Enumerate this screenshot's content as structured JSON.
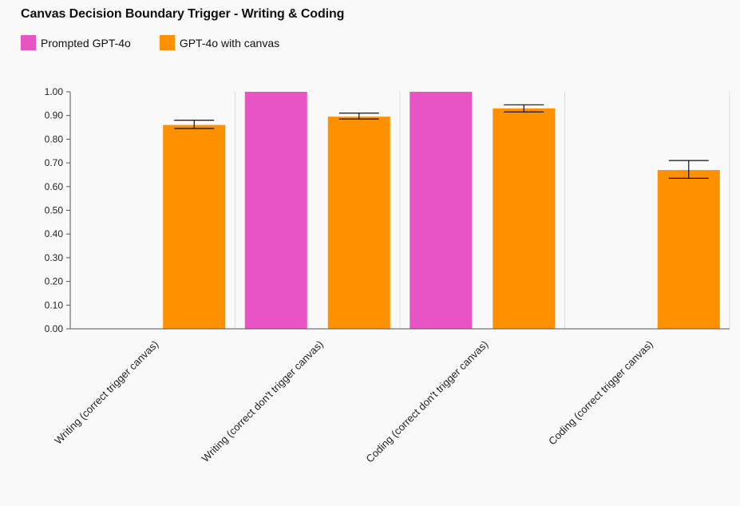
{
  "chart_data": {
    "type": "bar",
    "title": "Canvas Decision Boundary Trigger - Writing & Coding",
    "xlabel": "",
    "ylabel": "",
    "ylim": [
      0,
      1.0
    ],
    "yticks": [
      "0.00",
      "0.10",
      "0.20",
      "0.30",
      "0.40",
      "0.50",
      "0.60",
      "0.70",
      "0.80",
      "0.90",
      "1.00"
    ],
    "categories": [
      "Writing (correct trigger canvas)",
      "Writing (correct don't trigger canvas)",
      "Coding (correct don't trigger canvas)",
      "Coding (correct trigger canvas)"
    ],
    "series": [
      {
        "name": "Prompted GPT-4o",
        "color": "#e954c5",
        "values": [
          null,
          1.0,
          1.0,
          null
        ],
        "error": [
          null,
          null,
          null,
          null
        ]
      },
      {
        "name": "GPT-4o with canvas",
        "color": "#ff9100",
        "values": [
          0.86,
          0.895,
          0.93,
          0.67
        ],
        "error": [
          [
            0.845,
            0.88
          ],
          [
            0.885,
            0.91
          ],
          [
            0.915,
            0.945
          ],
          [
            0.635,
            0.71
          ]
        ]
      }
    ],
    "legend_position": "top-left",
    "grid": false
  }
}
